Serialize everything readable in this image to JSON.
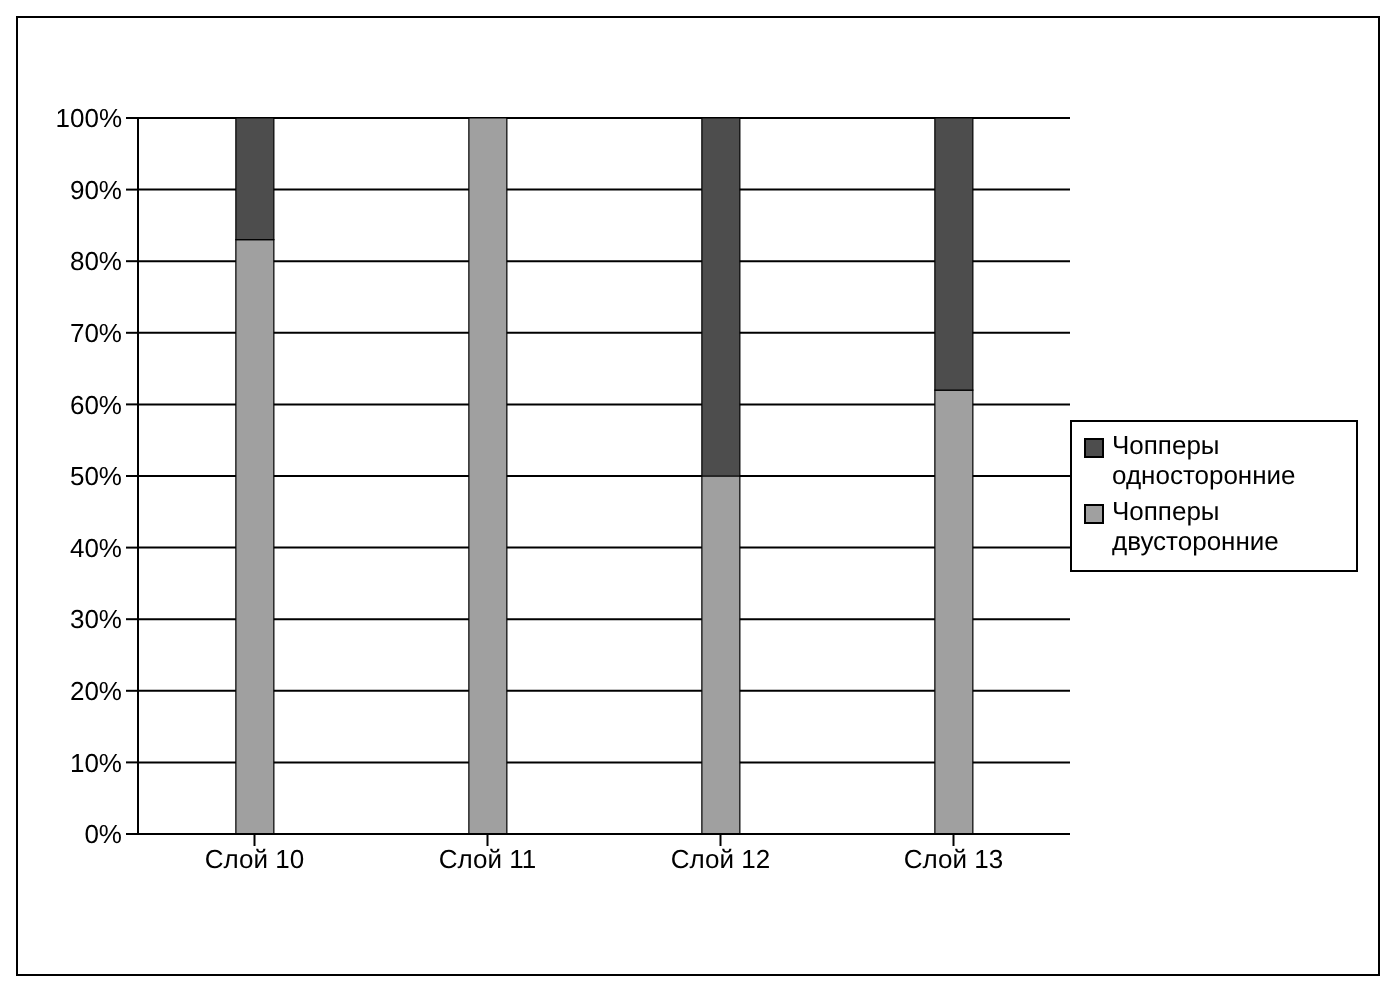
{
  "chart_data": {
    "type": "bar",
    "stacked": true,
    "categories": [
      "Слой 10",
      "Слой 11",
      "Слой 12",
      "Слой 13"
    ],
    "series": [
      {
        "name": "Чопперы двусторонние",
        "color": "#a0a0a0",
        "values": [
          83,
          100,
          50,
          62
        ]
      },
      {
        "name": "Чопперы односторонние",
        "color": "#4d4d4d",
        "values": [
          17,
          0,
          50,
          38
        ]
      }
    ],
    "ylim": [
      0,
      100
    ],
    "yticks": [
      {
        "value": 0,
        "label": "0%"
      },
      {
        "value": 10,
        "label": "10%"
      },
      {
        "value": 20,
        "label": "20%"
      },
      {
        "value": 30,
        "label": "30%"
      },
      {
        "value": 40,
        "label": "40%"
      },
      {
        "value": 50,
        "label": "50%"
      },
      {
        "value": 60,
        "label": "60%"
      },
      {
        "value": 70,
        "label": "70%"
      },
      {
        "value": 80,
        "label": "80%"
      },
      {
        "value": 90,
        "label": "90%"
      },
      {
        "value": 100,
        "label": "100%"
      }
    ],
    "grid": "y",
    "legend": "right"
  }
}
